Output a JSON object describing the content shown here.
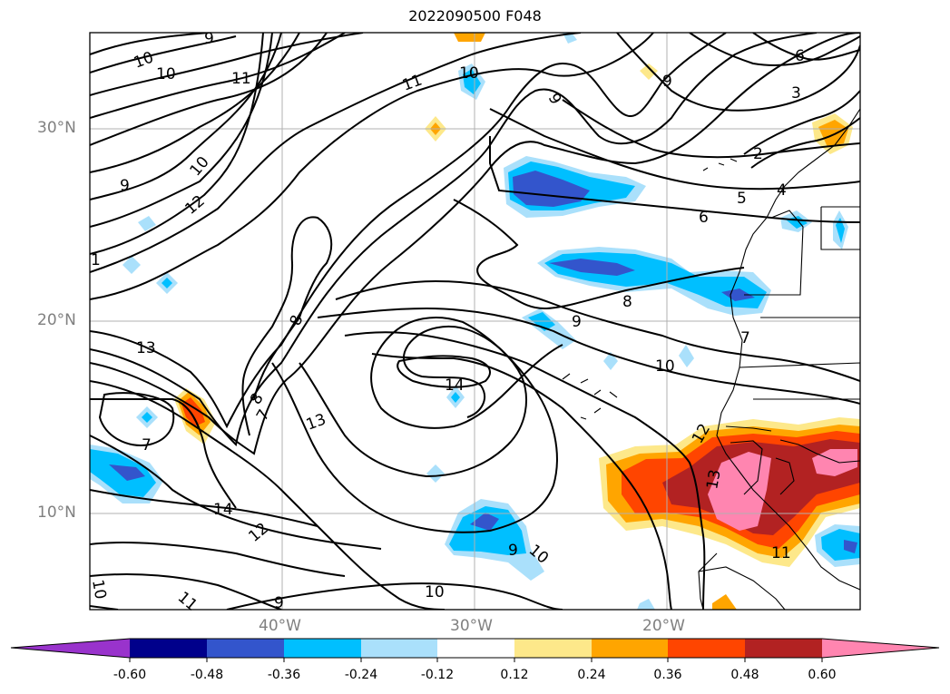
{
  "title": "2022090500 F048",
  "latitude_labels": [
    "30°N",
    "20°N",
    "10°N"
  ],
  "longitude_labels": [
    "40°W",
    "30°W",
    "20°W"
  ],
  "colorbar": {
    "ticks": [
      "-0.60",
      "-0.48",
      "-0.36",
      "-0.24",
      "-0.12",
      "0.12",
      "0.24",
      "0.36",
      "0.48",
      "0.60"
    ],
    "colors": [
      "#9933cc",
      "#00008b",
      "#3355cc",
      "#00bfff",
      "#aae0fb",
      "#ffffff",
      "#fde88a",
      "#ffa500",
      "#ff4500",
      "#b22222",
      "#ff85b0"
    ]
  },
  "contour_labels": [
    "9",
    "10",
    "10",
    "11",
    "11",
    "10",
    "9",
    "9",
    "6",
    "3",
    "2",
    "4",
    "5",
    "6",
    "9",
    "10",
    "12",
    "1",
    "8",
    "8",
    "9",
    "7",
    "8",
    "7",
    "13",
    "13",
    "7",
    "14",
    "10",
    "12",
    "13",
    "11",
    "12",
    "9",
    "10",
    "10",
    "11",
    "10",
    "9",
    "14"
  ]
}
